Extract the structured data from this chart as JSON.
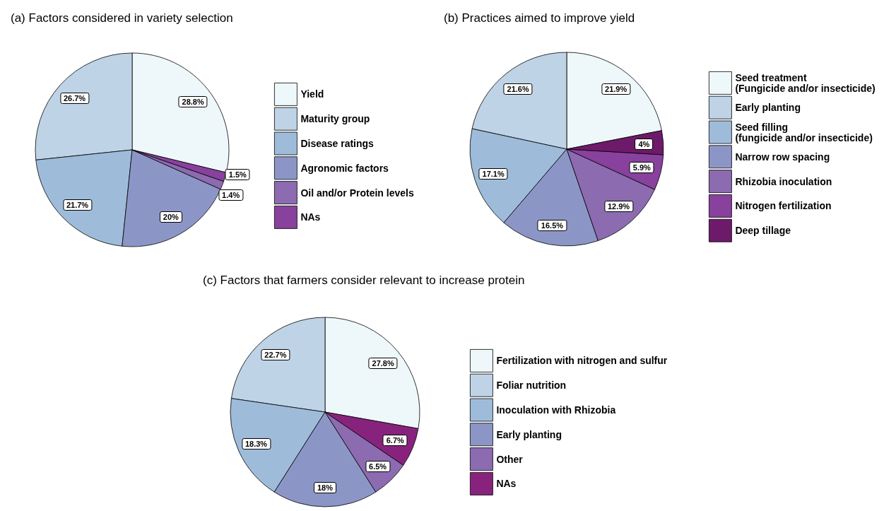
{
  "chart_data": [
    {
      "type": "pie",
      "title": "(a) Factors considered in variety selection",
      "categories": [
        "Yield",
        "Maturity group",
        "Disease ratings",
        "Agronomic factors",
        "Oil and/or Protein levels",
        "NAs"
      ],
      "values": [
        28.8,
        26.7,
        21.7,
        20,
        1.4,
        1.5
      ],
      "value_labels": [
        "28.8%",
        "26.7%",
        "21.7%",
        "20%",
        "1.4%",
        "1.5%"
      ],
      "colors": [
        "#eef7fa",
        "#bfd3e6",
        "#9ebcda",
        "#8c96c6",
        "#8c6bb1",
        "#88419d"
      ],
      "legend": "right"
    },
    {
      "type": "pie",
      "title": "(b) Practices aimed to improve yield",
      "categories": [
        "Seed treatment\n(Fungicide and/or insecticide)",
        "Early planting",
        "Seed filling\n(fungicide and/or insecticide)",
        "Narrow row spacing",
        "Rhizobia inoculation",
        "Nitrogen fertilization",
        "Deep tillage"
      ],
      "values": [
        21.9,
        21.6,
        17.1,
        16.5,
        12.9,
        5.9,
        4
      ],
      "value_labels": [
        "21.9%",
        "21.6%",
        "17.1%",
        "16.5%",
        "12.9%",
        "5.9%",
        "4%"
      ],
      "colors": [
        "#eef7fa",
        "#bfd3e6",
        "#9ebcda",
        "#8c96c6",
        "#8c6bb1",
        "#88419d",
        "#6e1a6b"
      ],
      "legend": "right"
    },
    {
      "type": "pie",
      "title": "(c) Factors that farmers consider relevant to increase protein",
      "categories": [
        "Fertilization with nitrogen and sulfur",
        "Foliar nutrition",
        "Inoculation with Rhizobia",
        "Early planting",
        "Other",
        "NAs"
      ],
      "values": [
        27.8,
        22.7,
        18.3,
        18,
        6.5,
        6.7
      ],
      "value_labels": [
        "27.8%",
        "22.7%",
        "18.3%",
        "18%",
        "6.5%",
        "6.7%"
      ],
      "colors": [
        "#eef7fa",
        "#bfd3e6",
        "#9ebcda",
        "#8c96c6",
        "#8c6bb1",
        "#88237d"
      ],
      "legend": "right"
    }
  ]
}
